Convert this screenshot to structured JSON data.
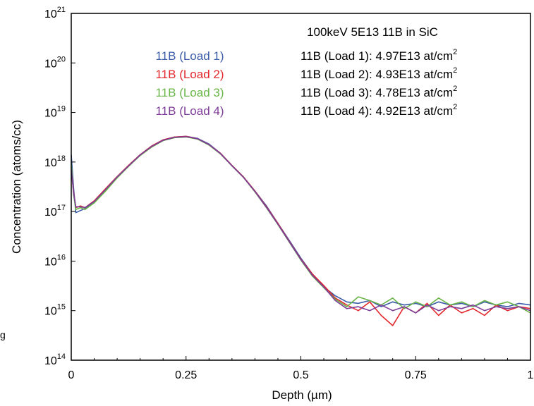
{
  "stray_text": "g",
  "chart_data": {
    "type": "line",
    "title": "100keV 5E13 11B in SiC",
    "xlabel": "Depth (µm)",
    "ylabel": "Concentration (atoms/cc)",
    "xlim": [
      0,
      1
    ],
    "ylim": [
      100000000000000.0,
      1e+21
    ],
    "yscale": "log",
    "grid": false,
    "x_ticks": [
      {
        "value": 0,
        "label": "0"
      },
      {
        "value": 0.25,
        "label": "0.25"
      },
      {
        "value": 0.5,
        "label": "0.5"
      },
      {
        "value": 0.75,
        "label": "0.75"
      },
      {
        "value": 1,
        "label": "1"
      }
    ],
    "y_ticks": [
      {
        "value": 100000000000000.0,
        "base": "10",
        "exp": "14"
      },
      {
        "value": 1000000000000000.0,
        "base": "10",
        "exp": "15"
      },
      {
        "value": 1e+16,
        "base": "10",
        "exp": "16"
      },
      {
        "value": 1e+17,
        "base": "10",
        "exp": "17"
      },
      {
        "value": 1e+18,
        "base": "10",
        "exp": "18"
      },
      {
        "value": 1e+19,
        "base": "10",
        "exp": "19"
      },
      {
        "value": 1e+20,
        "base": "10",
        "exp": "20"
      },
      {
        "value": 1e+21,
        "base": "10",
        "exp": "21"
      }
    ],
    "legend_position": "top-left",
    "annotations": [
      {
        "text": "11B (Load 1): 4.97E13 at/cm",
        "sup": "2"
      },
      {
        "text": "11B (Load 2): 4.93E13 at/cm",
        "sup": "2"
      },
      {
        "text": "11B (Load 3): 4.78E13 at/cm",
        "sup": "2"
      },
      {
        "text": "11B (Load 4): 4.92E13 at/cm",
        "sup": "2"
      }
    ],
    "series": [
      {
        "name": "11B (Load 1)",
        "color": "#3b5ca8",
        "x": [
          0.0,
          0.005,
          0.01,
          0.02,
          0.03,
          0.05,
          0.075,
          0.1,
          0.125,
          0.15,
          0.175,
          0.2,
          0.225,
          0.25,
          0.275,
          0.3,
          0.325,
          0.35,
          0.375,
          0.4,
          0.425,
          0.45,
          0.475,
          0.5,
          0.525,
          0.55,
          0.575,
          0.6,
          0.625,
          0.65,
          0.675,
          0.7,
          0.725,
          0.75,
          0.775,
          0.8,
          0.825,
          0.85,
          0.875,
          0.9,
          0.925,
          0.95,
          0.975,
          1.0
        ],
        "y": [
          1.4e+18,
          3e+17,
          9.5e+16,
          1.05e+17,
          1.15e+17,
          1.6e+17,
          2.8e+17,
          5e+17,
          8.5e+17,
          1.4e+18,
          2.1e+18,
          2.8e+18,
          3.2e+18,
          3.3e+18,
          3e+18,
          2.3e+18,
          1.5e+18,
          8.5e+17,
          5e+17,
          2.6e+17,
          1.3e+17,
          5.8e+16,
          2.6e+16,
          1.15e+16,
          5500000000000000.0,
          3000000000000000.0,
          2000000000000000.0,
          1500000000000000.0,
          1400000000000000.0,
          1600000000000000.0,
          1200000000000000.0,
          1500000000000000.0,
          1300000000000000.0,
          1400000000000000.0,
          1200000000000000.0,
          1500000000000000.0,
          1300000000000000.0,
          1400000000000000.0,
          1200000000000000.0,
          1500000000000000.0,
          1300000000000000.0,
          1200000000000000.0,
          1400000000000000.0,
          1300000000000000.0
        ]
      },
      {
        "name": "11B (Load 2)",
        "color": "#e3282e",
        "x": [
          0.0,
          0.005,
          0.01,
          0.02,
          0.03,
          0.05,
          0.075,
          0.1,
          0.125,
          0.15,
          0.175,
          0.2,
          0.225,
          0.25,
          0.275,
          0.3,
          0.325,
          0.35,
          0.375,
          0.4,
          0.425,
          0.45,
          0.475,
          0.5,
          0.525,
          0.55,
          0.575,
          0.6,
          0.625,
          0.65,
          0.675,
          0.7,
          0.725,
          0.75,
          0.775,
          0.8,
          0.825,
          0.85,
          0.875,
          0.9,
          0.925,
          0.95,
          0.975,
          1.0
        ],
        "y": [
          8e+17,
          2.5e+17,
          1.2e+17,
          1.3e+17,
          1.2e+17,
          1.65e+17,
          2.9e+17,
          5.1e+17,
          8.6e+17,
          1.4e+18,
          2.1e+18,
          2.8e+18,
          3.2e+18,
          3.3e+18,
          2.95e+18,
          2.25e+18,
          1.5e+18,
          8.5e+17,
          5e+17,
          2.6e+17,
          1.25e+17,
          5.8e+16,
          2.5e+16,
          1.1e+16,
          5500000000000000.0,
          3200000000000000.0,
          1800000000000000.0,
          1300000000000000.0,
          1000000000000000.0,
          1500000000000000.0,
          800000000000000.0,
          500000000000000.0,
          1200000000000000.0,
          900000000000000.0,
          1400000000000000.0,
          800000000000000.0,
          1300000000000000.0,
          900000000000000.0,
          1100000000000000.0,
          800000000000000.0,
          1300000000000000.0,
          1000000000000000.0,
          1200000000000000.0,
          1100000000000000.0
        ]
      },
      {
        "name": "11B (Load 3)",
        "color": "#6ab547",
        "x": [
          0.0,
          0.005,
          0.01,
          0.02,
          0.03,
          0.05,
          0.075,
          0.1,
          0.125,
          0.15,
          0.175,
          0.2,
          0.225,
          0.25,
          0.275,
          0.3,
          0.325,
          0.35,
          0.375,
          0.4,
          0.425,
          0.45,
          0.475,
          0.5,
          0.525,
          0.55,
          0.575,
          0.6,
          0.625,
          0.65,
          0.675,
          0.7,
          0.725,
          0.75,
          0.775,
          0.8,
          0.825,
          0.85,
          0.875,
          0.9,
          0.925,
          0.95,
          0.975,
          1.0
        ],
        "y": [
          9e+17,
          2.2e+17,
          1.1e+17,
          1.2e+17,
          1.1e+17,
          1.5e+17,
          2.6e+17,
          4.8e+17,
          8.2e+17,
          1.35e+18,
          2e+18,
          2.7e+18,
          3.1e+18,
          3.2e+18,
          2.9e+18,
          2.2e+18,
          1.45e+18,
          8.3e+17,
          4.9e+17,
          2.5e+17,
          1.2e+17,
          5.5e+16,
          2.4e+16,
          1.05e+16,
          5000000000000000.0,
          2900000000000000.0,
          1700000000000000.0,
          1200000000000000.0,
          1900000000000000.0,
          1600000000000000.0,
          1300000000000000.0,
          1800000000000000.0,
          1100000000000000.0,
          1500000000000000.0,
          1200000000000000.0,
          1800000000000000.0,
          1300000000000000.0,
          1500000000000000.0,
          1200000000000000.0,
          1600000000000000.0,
          1300000000000000.0,
          1500000000000000.0,
          1200000000000000.0,
          900000000000000.0
        ]
      },
      {
        "name": "11B (Load 4)",
        "color": "#7d3c98",
        "x": [
          0.0,
          0.005,
          0.01,
          0.02,
          0.03,
          0.05,
          0.075,
          0.1,
          0.125,
          0.15,
          0.175,
          0.2,
          0.225,
          0.25,
          0.275,
          0.3,
          0.325,
          0.35,
          0.375,
          0.4,
          0.425,
          0.45,
          0.475,
          0.5,
          0.525,
          0.55,
          0.575,
          0.6,
          0.625,
          0.65,
          0.675,
          0.7,
          0.725,
          0.75,
          0.775,
          0.8,
          0.825,
          0.85,
          0.875,
          0.9,
          0.925,
          0.95,
          0.975,
          1.0
        ],
        "y": [
          7e+17,
          2.4e+17,
          1.25e+17,
          1.25e+17,
          1.2e+17,
          1.6e+17,
          2.8e+17,
          5e+17,
          8.4e+17,
          1.38e+18,
          2.05e+18,
          2.75e+18,
          3.15e+18,
          3.25e+18,
          2.95e+18,
          2.25e+18,
          1.48e+18,
          8.4e+17,
          4.9e+17,
          2.55e+17,
          1.22e+17,
          5.6e+16,
          2.45e+16,
          1.08e+16,
          5200000000000000.0,
          3000000000000000.0,
          1600000000000000.0,
          1100000000000000.0,
          1200000000000000.0,
          1000000000000000.0,
          1300000000000000.0,
          1000000000000000.0,
          1200000000000000.0,
          900000000000000.0,
          1300000000000000.0,
          1000000000000000.0,
          1200000000000000.0,
          1100000000000000.0,
          1300000000000000.0,
          1000000000000000.0,
          1200000000000000.0,
          1100000000000000.0,
          1200000000000000.0,
          1000000000000000.0
        ]
      }
    ]
  }
}
